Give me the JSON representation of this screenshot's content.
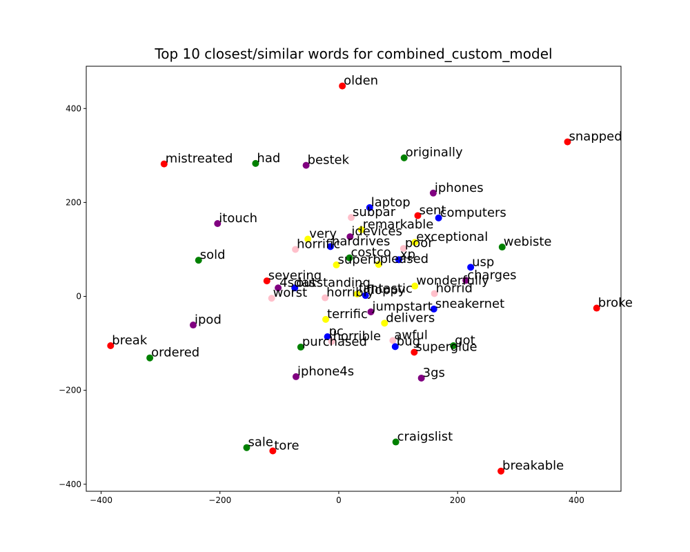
{
  "chart_data": {
    "type": "scatter",
    "title": "Top 10 closest/similar words for combined_custom_model",
    "xlabel": "",
    "ylabel": "",
    "xlim": [
      -425,
      475
    ],
    "ylim": [
      -415,
      490
    ],
    "xticks": [
      -400,
      -200,
      0,
      200,
      400
    ],
    "yticks": [
      -400,
      -200,
      0,
      200,
      400
    ],
    "grid": false,
    "colors": {
      "red": "#ff0000",
      "green": "#008000",
      "purple": "#800080",
      "blue": "#0000ff",
      "yellow": "#ffff00",
      "pink": "#ffc0cb"
    },
    "points": [
      {
        "word": "olden",
        "x": 6,
        "y": 448,
        "color": "red"
      },
      {
        "word": "snapped",
        "x": 385,
        "y": 329,
        "color": "red"
      },
      {
        "word": "mistreated",
        "x": -294,
        "y": 282,
        "color": "red"
      },
      {
        "word": "had",
        "x": -140,
        "y": 283,
        "color": "green"
      },
      {
        "word": "bestek",
        "x": -55,
        "y": 279,
        "color": "purple"
      },
      {
        "word": "originally",
        "x": 110,
        "y": 295,
        "color": "green"
      },
      {
        "word": "iphones",
        "x": 159,
        "y": 220,
        "color": "purple"
      },
      {
        "word": "laptop",
        "x": 52,
        "y": 189,
        "color": "blue"
      },
      {
        "word": "sent",
        "x": 133,
        "y": 172,
        "color": "red"
      },
      {
        "word": "computers",
        "x": 168,
        "y": 167,
        "color": "blue"
      },
      {
        "word": "subpar",
        "x": 21,
        "y": 168,
        "color": "pink"
      },
      {
        "word": "remarkable",
        "x": 38,
        "y": 142,
        "color": "yellow"
      },
      {
        "word": "itouch",
        "x": -204,
        "y": 155,
        "color": "purple"
      },
      {
        "word": "very",
        "x": -52,
        "y": 122,
        "color": "yellow"
      },
      {
        "word": "idevices",
        "x": 19,
        "y": 127,
        "color": "purple"
      },
      {
        "word": "exceptional",
        "x": 128,
        "y": 115,
        "color": "yellow"
      },
      {
        "word": "webiste",
        "x": 275,
        "y": 105,
        "color": "green"
      },
      {
        "word": "horrific",
        "x": -73,
        "y": 100,
        "color": "pink"
      },
      {
        "word": "hardrives",
        "x": -14,
        "y": 106,
        "color": "blue"
      },
      {
        "word": "poor",
        "x": 109,
        "y": 102,
        "color": "pink"
      },
      {
        "word": "costco",
        "x": 18,
        "y": 82,
        "color": "green"
      },
      {
        "word": "xp",
        "x": 101,
        "y": 78,
        "color": "blue"
      },
      {
        "word": "sold",
        "x": -236,
        "y": 77,
        "color": "green"
      },
      {
        "word": "superb",
        "x": -4,
        "y": 67,
        "color": "yellow"
      },
      {
        "word": "pleased",
        "x": 67,
        "y": 68,
        "color": "yellow"
      },
      {
        "word": "usp",
        "x": 222,
        "y": 62,
        "color": "blue"
      },
      {
        "word": "charges",
        "x": 214,
        "y": 34,
        "color": "purple"
      },
      {
        "word": "severing",
        "x": -121,
        "y": 33,
        "color": "red"
      },
      {
        "word": "4sdas",
        "x": -102,
        "y": 18,
        "color": "purple"
      },
      {
        "word": "outstanding",
        "x": -74,
        "y": 18,
        "color": "blue"
      },
      {
        "word": "wonderfully",
        "x": 128,
        "y": 22,
        "color": "yellow"
      },
      {
        "word": "horrid",
        "x": 161,
        "y": 6,
        "color": "pink"
      },
      {
        "word": "fantastic",
        "x": 31,
        "y": 5,
        "color": "yellow"
      },
      {
        "word": "floppy",
        "x": 45,
        "y": 2,
        "color": "blue"
      },
      {
        "word": "horribly",
        "x": -23,
        "y": -3,
        "color": "pink"
      },
      {
        "word": "worst",
        "x": -113,
        "y": -4,
        "color": "pink"
      },
      {
        "word": "broke",
        "x": 434,
        "y": -25,
        "color": "red"
      },
      {
        "word": "jumpstart",
        "x": 54,
        "y": -33,
        "color": "purple"
      },
      {
        "word": "sneakernet",
        "x": 160,
        "y": -27,
        "color": "blue"
      },
      {
        "word": "terrific",
        "x": -22,
        "y": -49,
        "color": "yellow"
      },
      {
        "word": "delivers",
        "x": 77,
        "y": -57,
        "color": "yellow"
      },
      {
        "word": "ipod",
        "x": -245,
        "y": -61,
        "color": "purple"
      },
      {
        "word": "pc",
        "x": -19,
        "y": -86,
        "color": "blue"
      },
      {
        "word": "horrible",
        "x": -12,
        "y": -96,
        "color": "pink"
      },
      {
        "word": "awful",
        "x": 91,
        "y": -94,
        "color": "pink"
      },
      {
        "word": "break",
        "x": -384,
        "y": -105,
        "color": "red"
      },
      {
        "word": "purchased",
        "x": -64,
        "y": -108,
        "color": "green"
      },
      {
        "word": "bug",
        "x": 95,
        "y": -107,
        "color": "blue"
      },
      {
        "word": "got",
        "x": 193,
        "y": -105,
        "color": "green"
      },
      {
        "word": "superglue",
        "x": 127,
        "y": -119,
        "color": "red"
      },
      {
        "word": "ordered",
        "x": -318,
        "y": -131,
        "color": "green"
      },
      {
        "word": "iphone4s",
        "x": -72,
        "y": -171,
        "color": "purple"
      },
      {
        "word": "3gs",
        "x": 139,
        "y": -174,
        "color": "purple"
      },
      {
        "word": "craigslist",
        "x": 96,
        "y": -310,
        "color": "green"
      },
      {
        "word": "sale",
        "x": -155,
        "y": -322,
        "color": "green"
      },
      {
        "word": "tore",
        "x": -111,
        "y": -329,
        "color": "red"
      },
      {
        "word": "breakable",
        "x": 273,
        "y": -372,
        "color": "red"
      }
    ]
  }
}
